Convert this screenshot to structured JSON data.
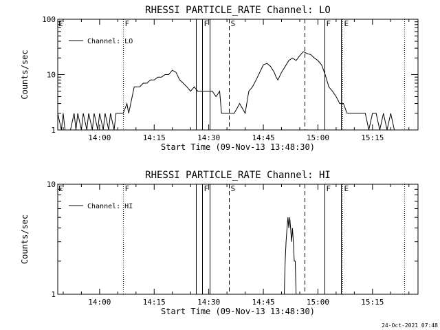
{
  "footer_timestamp": "24-Oct-2021 07:48",
  "chart_data": [
    {
      "type": "line",
      "title": "RHESSI PARTICLE_RATE Channel: LO",
      "xlabel": "Start Time (09-Nov-13 13:48:30)",
      "ylabel": "Counts/sec",
      "yscale": "log",
      "ylim": [
        1,
        100
      ],
      "xlim": [
        "13:48:30",
        "15:27:30"
      ],
      "x_ticks": [
        "14:00",
        "14:15",
        "14:30",
        "14:45",
        "15:00",
        "15:15"
      ],
      "y_ticks": [
        "1",
        "10",
        "100"
      ],
      "legend": {
        "position": "top-left",
        "entries": [
          "Channel: LO"
        ]
      },
      "series": [
        {
          "name": "Channel: LO",
          "x": [
            "13:48:30",
            "13:49:30",
            "13:50:00",
            "13:50:30",
            "13:51:30",
            "13:52:00",
            "13:53:00",
            "13:53:30",
            "13:54:00",
            "13:55:00",
            "13:55:30",
            "13:56:30",
            "13:57:00",
            "13:58:00",
            "13:58:30",
            "13:59:30",
            "14:00:00",
            "14:01:00",
            "14:01:30",
            "14:02:30",
            "14:03:00",
            "14:04:00",
            "14:04:30",
            "14:05:30",
            "14:06:00",
            "14:06:30",
            "14:07:30",
            "14:08:00",
            "14:09:30",
            "14:11:00",
            "14:12:00",
            "14:13:00",
            "14:14:00",
            "14:15:00",
            "14:16:00",
            "14:17:00",
            "14:18:00",
            "14:19:00",
            "14:20:00",
            "14:21:00",
            "14:22:00",
            "14:23:00",
            "14:24:00",
            "14:25:00",
            "14:26:00",
            "14:27:00",
            "14:28:00",
            "14:29:00",
            "14:30:00",
            "14:31:00",
            "14:32:00",
            "14:33:00",
            "14:33:30",
            "14:34:00",
            "14:35:30",
            "14:37:00",
            "14:38:30",
            "14:40:00",
            "14:41:00",
            "14:42:00",
            "14:43:00",
            "14:44:00",
            "14:45:00",
            "14:46:00",
            "14:47:00",
            "14:48:00",
            "14:48:30",
            "14:49:00",
            "14:50:00",
            "14:51:00",
            "14:52:00",
            "14:53:00",
            "14:54:00",
            "14:55:00",
            "14:56:00",
            "14:57:00",
            "14:58:00",
            "14:59:00",
            "15:00:00",
            "15:01:00",
            "15:02:00",
            "15:03:00",
            "15:04:00",
            "15:05:00",
            "15:06:00",
            "15:07:00",
            "15:08:00",
            "15:09:00",
            "15:10:00",
            "15:11:00",
            "15:12:00",
            "15:13:00",
            "15:14:00",
            "15:15:00",
            "15:16:00",
            "15:17:00",
            "15:18:00",
            "15:19:00",
            "15:20:00",
            "15:21:00",
            "15:22:00",
            "15:23:00",
            "15:24:00",
            "15:25:00",
            "15:26:00",
            "15:27:00"
          ],
          "y": [
            2,
            1,
            2,
            1,
            1,
            1,
            2,
            1,
            2,
            1,
            2,
            1,
            2,
            1,
            2,
            1,
            2,
            1,
            2,
            1,
            2,
            1,
            2,
            2,
            2,
            2,
            3,
            2,
            6,
            6,
            7,
            7,
            8,
            8,
            9,
            9,
            10,
            10,
            12,
            11,
            8,
            7,
            6,
            5,
            6,
            5,
            5,
            5,
            5,
            5,
            4,
            5,
            2,
            2,
            2,
            2,
            3,
            2,
            5,
            6,
            8,
            11,
            15,
            16,
            14,
            11,
            9,
            8,
            11,
            14,
            18,
            20,
            18,
            22,
            26,
            24,
            23,
            20,
            18,
            15,
            10,
            6,
            5,
            4,
            3,
            3,
            2,
            2,
            2,
            2,
            2,
            2,
            1,
            2,
            2,
            1,
            2,
            1,
            2,
            1,
            1,
            1,
            1,
            1,
            1,
            1
          ]
        }
      ],
      "vertical_markers": [
        {
          "time": "14:06:30",
          "style": "dotted",
          "label": "F"
        },
        {
          "time": "14:26:30",
          "style": "solid",
          "label": ""
        },
        {
          "time": "14:28:15",
          "style": "solid",
          "label": "F"
        },
        {
          "time": "14:30:15",
          "style": "solid",
          "label": ""
        },
        {
          "time": "14:35:30",
          "style": "dashed",
          "label": "S"
        },
        {
          "time": "14:56:15",
          "style": "dashed",
          "label": ""
        },
        {
          "time": "15:01:45",
          "style": "solid",
          "label": "F"
        },
        {
          "time": "15:06:15",
          "style": "solid",
          "label": ""
        },
        {
          "time": "15:06:45",
          "style": "dotted",
          "label": "E"
        },
        {
          "time": "15:23:45",
          "style": "dotted",
          "label": ""
        }
      ],
      "edge_labels": [
        {
          "label": "E"
        }
      ]
    },
    {
      "type": "line",
      "title": "RHESSI PARTICLE_RATE Channel: HI",
      "xlabel": "Start Time (09-Nov-13 13:48:30)",
      "ylabel": "Counts/sec",
      "yscale": "log",
      "ylim": [
        1,
        10
      ],
      "xlim": [
        "13:48:30",
        "15:27:30"
      ],
      "x_ticks": [
        "14:00",
        "14:15",
        "14:30",
        "14:45",
        "15:00",
        "15:15"
      ],
      "y_ticks": [
        "1",
        "10"
      ],
      "legend": {
        "position": "top-left",
        "entries": [
          "Channel: HI"
        ]
      },
      "series": [
        {
          "name": "Channel: HI",
          "x": [
            "14:50:45",
            "14:51:00",
            "14:51:15",
            "14:51:30",
            "14:51:45",
            "14:52:00",
            "14:52:15",
            "14:52:30",
            "14:52:45",
            "14:53:00",
            "14:53:15",
            "14:53:30",
            "14:53:45",
            "14:54:00",
            "14:54:15"
          ],
          "y": [
            1,
            2,
            3,
            4,
            5,
            4,
            5,
            4,
            3,
            4,
            3,
            2,
            2,
            1,
            1
          ]
        }
      ],
      "vertical_markers": [
        {
          "time": "14:06:30",
          "style": "dotted",
          "label": "F"
        },
        {
          "time": "14:26:30",
          "style": "solid",
          "label": ""
        },
        {
          "time": "14:28:15",
          "style": "solid",
          "label": "F"
        },
        {
          "time": "14:30:15",
          "style": "solid",
          "label": ""
        },
        {
          "time": "14:35:30",
          "style": "dashed",
          "label": "S"
        },
        {
          "time": "14:56:15",
          "style": "dashed",
          "label": ""
        },
        {
          "time": "15:01:45",
          "style": "solid",
          "label": "F"
        },
        {
          "time": "15:06:15",
          "style": "solid",
          "label": ""
        },
        {
          "time": "15:06:45",
          "style": "dotted",
          "label": "E"
        },
        {
          "time": "15:23:45",
          "style": "dotted",
          "label": ""
        }
      ],
      "edge_labels": [
        {
          "label": "E"
        }
      ]
    }
  ]
}
